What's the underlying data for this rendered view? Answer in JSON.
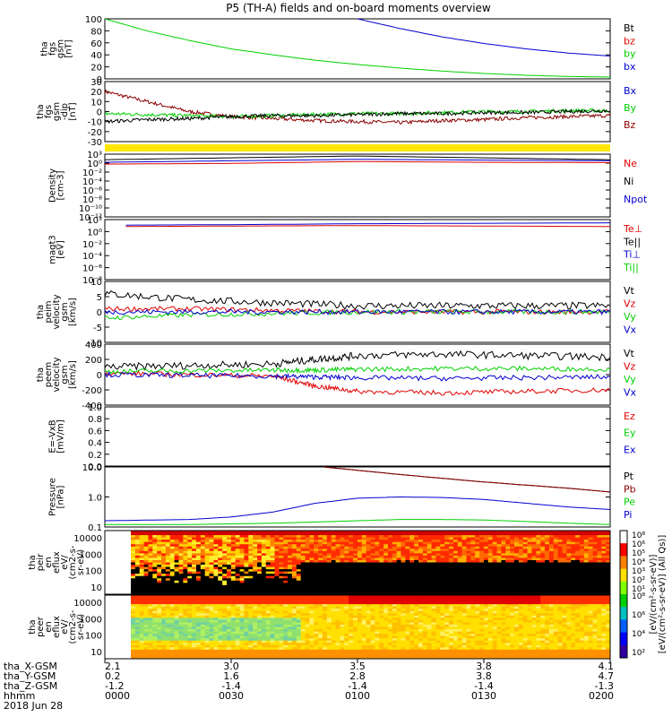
{
  "title": "P5 (TH-A) fields and on-board moments overview",
  "colors": {
    "black": "#000000",
    "red": "#e00000",
    "darkred": "#8b0000",
    "green": "#00d000",
    "blue": "#0000d0",
    "yellow": "#ffe600"
  },
  "chart_data": [
    {
      "type": "line",
      "id": "fgs-mag",
      "ylabel": [
        "tha",
        "fgs",
        "gsm",
        "[nT]"
      ],
      "ylim": [
        0,
        100
      ],
      "yticks": [
        "100",
        "80",
        "60",
        "40",
        "20",
        "0"
      ],
      "legend": [
        {
          "label": "Bt",
          "color": "black"
        },
        {
          "label": "bz",
          "color": "red"
        },
        {
          "label": "by",
          "color": "green"
        },
        {
          "label": "bx",
          "color": "blue"
        }
      ],
      "series": [
        {
          "name": "by",
          "color": "green",
          "x": [
            0,
            10,
            20,
            30,
            40,
            50,
            60,
            70,
            80,
            90,
            100,
            110,
            120
          ],
          "y": [
            100,
            80,
            64,
            50,
            40,
            31,
            24,
            18,
            13,
            9,
            6,
            4,
            3
          ]
        },
        {
          "name": "bx",
          "color": "blue",
          "x": [
            60,
            70,
            80,
            90,
            100,
            110,
            120
          ],
          "y": [
            100,
            84,
            70,
            59,
            50,
            43,
            38
          ]
        }
      ]
    },
    {
      "type": "line",
      "id": "fgs-dipole",
      "ylabel": [
        "tha",
        "fgs",
        "gsm",
        "-dip",
        "[nT]"
      ],
      "ylim": [
        -30,
        30
      ],
      "yticks": [
        "30",
        "20",
        "10",
        "0",
        "-10",
        "-20",
        "-30"
      ],
      "legend": [
        {
          "label": "Bx",
          "color": "blue"
        },
        {
          "label": "By",
          "color": "green"
        },
        {
          "label": "Bz",
          "color": "darkred"
        }
      ],
      "series": [
        {
          "name": "Bz",
          "color": "darkred",
          "x": [
            0,
            10,
            20,
            30,
            40,
            50,
            60,
            70,
            80,
            90,
            100,
            110,
            120
          ],
          "y": [
            20,
            10,
            0,
            -5,
            -7,
            -9,
            -10,
            -11,
            -9,
            -8,
            -6,
            -5,
            -4
          ]
        },
        {
          "name": "By",
          "color": "green",
          "x": [
            0,
            10,
            20,
            30,
            40,
            50,
            60,
            70,
            80,
            90,
            100,
            110,
            120
          ],
          "y": [
            -2,
            -3,
            -4,
            -5,
            -4,
            -3,
            -2,
            -2,
            -1,
            0,
            0,
            1,
            1
          ]
        },
        {
          "name": "Bt",
          "color": "black",
          "x": [
            0,
            10,
            20,
            30,
            40,
            50,
            60,
            70,
            80,
            90,
            100,
            110,
            120
          ],
          "y": [
            -10,
            -8,
            -7,
            -5,
            -4,
            -4,
            -3,
            -2,
            -2,
            -1,
            -1,
            0,
            1
          ]
        }
      ]
    },
    {
      "type": "line",
      "id": "density",
      "ylabel": [
        "Density",
        "[cm-3]"
      ],
      "ylim_log": [
        -14,
        3
      ],
      "yticks": [
        "10³",
        "10⁰",
        "10⁻²",
        "10⁻⁴",
        "10⁻⁶",
        "10⁻⁸",
        "10⁻¹⁰",
        "10⁻¹²"
      ],
      "legend": [
        {
          "label": "Ne",
          "color": "red"
        },
        {
          "label": "Ni",
          "color": "black"
        },
        {
          "label": "Npot",
          "color": "blue"
        }
      ],
      "series": [
        {
          "name": "Ni",
          "color": "black",
          "x": [
            0,
            30,
            60,
            90,
            120
          ],
          "y": [
            1.5,
            2.0,
            2.5,
            2.0,
            1.5
          ]
        },
        {
          "name": "Npot",
          "color": "blue",
          "x": [
            0,
            30,
            60,
            90,
            120
          ],
          "y": [
            0.8,
            1.2,
            1.6,
            1.4,
            1.2
          ]
        },
        {
          "name": "Ne",
          "color": "red",
          "x": [
            0,
            30,
            60,
            90,
            120
          ],
          "y": [
            0.3,
            0.5,
            1.0,
            0.8,
            0.7
          ]
        }
      ]
    },
    {
      "type": "line",
      "id": "magt3",
      "ylabel": [
        "magt3",
        "[eV]"
      ],
      "ylim_log": [
        -10,
        3
      ],
      "yticks": [
        "10³",
        "10⁰",
        "10⁻²",
        "10⁻⁴",
        "10⁻⁶",
        "10⁻⁸"
      ],
      "legend": [
        {
          "label": "Te⊥",
          "color": "red"
        },
        {
          "label": "Te||",
          "color": "black"
        },
        {
          "label": "Ti⊥",
          "color": "blue"
        },
        {
          "label": "Ti||",
          "color": "green"
        }
      ],
      "series": [
        {
          "name": "Ti",
          "color": "blue",
          "x": [
            5,
            30,
            60,
            90,
            120
          ],
          "y": [
            1.8,
            1.9,
            2.1,
            2.2,
            2.3
          ]
        },
        {
          "name": "Te",
          "color": "red",
          "x": [
            5,
            30,
            60,
            90,
            120
          ],
          "y": [
            1.5,
            1.6,
            1.7,
            1.6,
            1.5
          ]
        }
      ]
    },
    {
      "type": "line",
      "id": "peim-velocity",
      "ylabel": [
        "tha",
        "peim",
        "velocity",
        "gsm",
        "[km/s]"
      ],
      "ylim": [
        -10,
        10
      ],
      "yticks": [
        "10",
        "5",
        "0",
        "-5",
        "-10"
      ],
      "legend": [
        {
          "label": "Vt",
          "color": "black"
        },
        {
          "label": "Vz",
          "color": "red"
        },
        {
          "label": "Vy",
          "color": "green"
        },
        {
          "label": "Vx",
          "color": "blue"
        }
      ],
      "series": [
        {
          "name": "Vt",
          "color": "black",
          "x": [
            0,
            20,
            40,
            60,
            80,
            100,
            120
          ],
          "y": [
            6,
            4,
            3,
            2,
            2,
            2,
            2
          ]
        },
        {
          "name": "Vz",
          "color": "red",
          "x": [
            0,
            20,
            40,
            60,
            80,
            100,
            120
          ],
          "y": [
            1,
            1,
            0.5,
            0,
            0,
            0,
            0
          ]
        },
        {
          "name": "Vy",
          "color": "green",
          "x": [
            0,
            20,
            40,
            60,
            80,
            100,
            120
          ],
          "y": [
            -2,
            -1,
            -0.5,
            0,
            0,
            0,
            0
          ]
        },
        {
          "name": "Vx",
          "color": "blue",
          "x": [
            0,
            20,
            40,
            60,
            80,
            100,
            120
          ],
          "y": [
            0,
            0,
            0,
            0,
            0,
            0,
            0
          ]
        }
      ]
    },
    {
      "type": "line",
      "id": "peem-velocity",
      "ylabel": [
        "tha",
        "peem",
        "velocity",
        "gsm",
        "[km/s]"
      ],
      "ylim": [
        -400,
        400
      ],
      "yticks": [
        "400",
        "200",
        "0",
        "-200",
        "-400"
      ],
      "legend": [
        {
          "label": "Vt",
          "color": "black"
        },
        {
          "label": "Vz",
          "color": "red"
        },
        {
          "label": "Vy",
          "color": "green"
        },
        {
          "label": "Vx",
          "color": "blue"
        }
      ],
      "series": [
        {
          "name": "Vt",
          "color": "black",
          "x": [
            0,
            20,
            40,
            50,
            60,
            80,
            100,
            120
          ],
          "y": [
            100,
            120,
            140,
            200,
            250,
            270,
            250,
            230
          ]
        },
        {
          "name": "Vz",
          "color": "red",
          "x": [
            0,
            20,
            40,
            50,
            60,
            80,
            100,
            120
          ],
          "y": [
            20,
            0,
            -20,
            -150,
            -220,
            -240,
            -220,
            -200
          ]
        },
        {
          "name": "Vy",
          "color": "green",
          "x": [
            0,
            20,
            40,
            50,
            60,
            80,
            100,
            120
          ],
          "y": [
            40,
            50,
            60,
            60,
            70,
            80,
            80,
            70
          ]
        },
        {
          "name": "Vx",
          "color": "blue",
          "x": [
            0,
            20,
            40,
            50,
            60,
            80,
            100,
            120
          ],
          "y": [
            0,
            -10,
            -20,
            -30,
            -40,
            -50,
            -40,
            -30
          ]
        }
      ]
    },
    {
      "type": "line",
      "id": "efield",
      "ylabel": [
        "E=-VxB",
        "[mV/m]"
      ],
      "ylim": [
        0,
        1
      ],
      "yticks": [
        "1.0",
        "0.8",
        "0.6",
        "0.4",
        "0.2",
        "0.0"
      ],
      "legend": [
        {
          "label": "Ez",
          "color": "red"
        },
        {
          "label": "Ey",
          "color": "green"
        },
        {
          "label": "Ex",
          "color": "blue"
        }
      ],
      "series": []
    },
    {
      "type": "line",
      "id": "pressure",
      "ylabel": [
        "Pressure",
        "[nPa]"
      ],
      "ylim_log": [
        -1.3,
        1.1
      ],
      "yticks": [
        "10.0",
        "1.0",
        "0.1"
      ],
      "legend": [
        {
          "label": "Pt",
          "color": "black"
        },
        {
          "label": "Pb",
          "color": "darkred"
        },
        {
          "label": "Pe",
          "color": "green"
        },
        {
          "label": "Pi",
          "color": "blue"
        }
      ],
      "series": [
        {
          "name": "Pt",
          "color": "black",
          "x": [
            52,
            70,
            90,
            110,
            120
          ],
          "y": [
            1.1,
            0.8,
            0.5,
            0.25,
            0.1
          ]
        },
        {
          "name": "Pb",
          "color": "darkred",
          "x": [
            52,
            70,
            90,
            110,
            120
          ],
          "y": [
            1.1,
            0.8,
            0.5,
            0.25,
            0.1
          ]
        },
        {
          "name": "Pi",
          "color": "blue",
          "x": [
            0,
            20,
            30,
            40,
            50,
            60,
            70,
            80,
            90,
            100,
            110,
            120
          ],
          "y": [
            -1.05,
            -1.0,
            -0.9,
            -0.7,
            -0.35,
            -0.15,
            -0.1,
            -0.12,
            -0.2,
            -0.35,
            -0.5,
            -0.6
          ]
        },
        {
          "name": "Pe",
          "color": "green",
          "x": [
            0,
            20,
            40,
            60,
            70,
            80,
            90,
            100,
            110,
            120
          ],
          "y": [
            -1.2,
            -1.2,
            -1.15,
            -1.05,
            -1.0,
            -1.0,
            -1.02,
            -1.08,
            -1.15,
            -1.2
          ]
        }
      ]
    },
    {
      "type": "heatmap",
      "id": "peir-eflux",
      "ylabel": [
        "tha",
        "peir",
        "en",
        "eflux",
        "eV/",
        "(cm2-s-",
        "sr-eV)"
      ],
      "yticks": [
        "10000",
        "1000",
        "100",
        "10"
      ]
    },
    {
      "type": "heatmap",
      "id": "peer-eflux",
      "ylabel": [
        "tha",
        "peer",
        "en",
        "eflux",
        "eV/",
        "(cm2-s-",
        "sr-eV)"
      ],
      "yticks": [
        "10000",
        "1000",
        "100",
        "10"
      ]
    }
  ],
  "colorbar": {
    "label": "[eV/(cm²-s-sr-eV)] (All Qs)]",
    "label_overlap": "[eV/(cm²-s-sr-eV)]",
    "top_labels": [
      "10⁸",
      "10⁶",
      "10⁵",
      "10⁴",
      "10³",
      "10²",
      "10¹"
    ],
    "bottom_labels": [
      "10⁸",
      "10⁶",
      "10⁴",
      "10²"
    ]
  },
  "xaxis": {
    "row_labels": [
      "tha_X-GSM",
      "tha_Y-GSM",
      "tha_Z-GSM",
      "hhmm",
      "2018 Jun 28"
    ],
    "ticks": [
      {
        "values": [
          "2.1",
          "0.2",
          "-1.2",
          "0000"
        ]
      },
      {
        "values": [
          "3.0",
          "1.6",
          "-1.4",
          "0030"
        ]
      },
      {
        "values": [
          "3.5",
          "2.8",
          "-1.4",
          "0100"
        ]
      },
      {
        "values": [
          "3.8",
          "3.8",
          "-1.4",
          "0130"
        ]
      },
      {
        "values": [
          "4.1",
          "4.7",
          "-1.3",
          "0200"
        ]
      }
    ]
  }
}
